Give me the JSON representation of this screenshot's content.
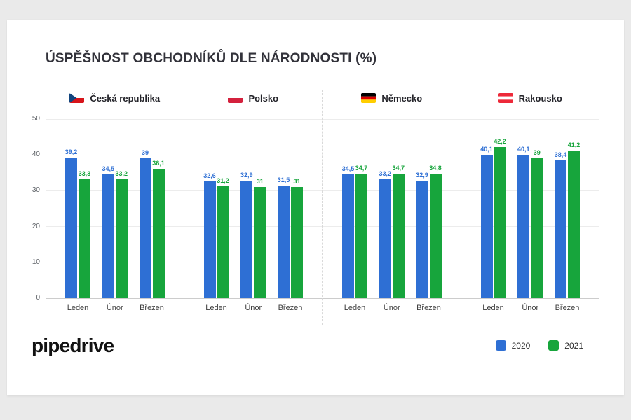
{
  "title": "ÚSPĚŠNOST OBCHODNÍKŮ DLE NÁRODNOSTI (%)",
  "logo": "pipedrive",
  "legend": [
    {
      "label": "2020",
      "color": "#2e6fd4"
    },
    {
      "label": "2021",
      "color": "#17a53c"
    }
  ],
  "chart_data": {
    "type": "bar",
    "title": "ÚSPĚŠNOST OBCHODNÍKŮ DLE NÁRODNOSTI (%)",
    "xlabel": "",
    "ylabel": "",
    "ylim": [
      0,
      50
    ],
    "yticks": [
      0,
      10,
      20,
      30,
      40,
      50
    ],
    "grid": true,
    "legend_position": "bottom-right",
    "months": [
      "Leden",
      "Únor",
      "Březen"
    ],
    "series_names": [
      "2020",
      "2021"
    ],
    "colors": {
      "2020": "#2e6fd4",
      "2021": "#17a53c"
    },
    "groups": [
      {
        "country": "Česká republika",
        "flag": "cz",
        "values_2020": [
          39.2,
          34.5,
          39
        ],
        "values_2021": [
          33.3,
          33.2,
          36.1
        ],
        "labels_2020": [
          "39,2",
          "34,5",
          "39"
        ],
        "labels_2021": [
          "33,3",
          "33,2",
          "36,1"
        ]
      },
      {
        "country": "Polsko",
        "flag": "pl",
        "values_2020": [
          32.6,
          32.9,
          31.5
        ],
        "values_2021": [
          31.2,
          31,
          31
        ],
        "labels_2020": [
          "32,6",
          "32,9",
          "31,5"
        ],
        "labels_2021": [
          "31,2",
          "31",
          "31"
        ]
      },
      {
        "country": "Německo",
        "flag": "de",
        "values_2020": [
          34.5,
          33.2,
          32.9
        ],
        "values_2021": [
          34.7,
          34.7,
          34.8
        ],
        "labels_2020": [
          "34,5",
          "33,2",
          "32,9"
        ],
        "labels_2021": [
          "34,7",
          "34,7",
          "34,8"
        ]
      },
      {
        "country": "Rakousko",
        "flag": "at",
        "values_2020": [
          40.1,
          40.1,
          38.4
        ],
        "values_2021": [
          42.2,
          39,
          41.2
        ],
        "labels_2020": [
          "40,1",
          "40,1",
          "38,4"
        ],
        "labels_2021": [
          "42,2",
          "39",
          "41,2"
        ]
      }
    ]
  }
}
